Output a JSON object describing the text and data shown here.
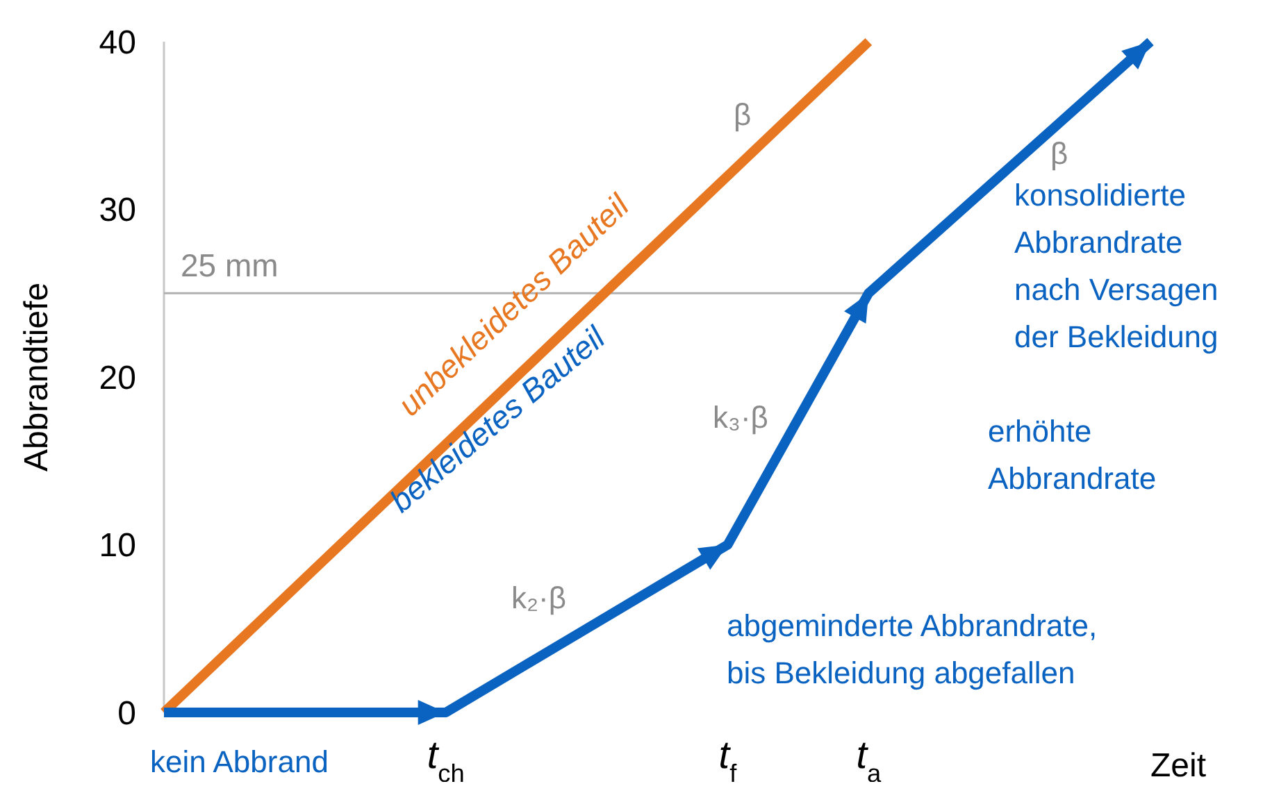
{
  "chart_data": {
    "type": "line",
    "xlabel": "Zeit",
    "ylabel": "Abbrandtiefe",
    "categories": [
      null,
      null,
      "t$_{ch}$",
      null,
      "t$_{f}$",
      "t$_{a}$",
      null,
      null
    ],
    "ylim": [
      0,
      40
    ],
    "yticks": [
      0,
      10,
      20,
      30,
      40
    ],
    "grid": false,
    "marker": "none",
    "line_style": "solid",
    "series": [
      {
        "name": "unbekleidetes Bauteil",
        "color": "#e87722",
        "values": [
          0,
          8,
          16,
          24,
          32,
          40,
          null,
          null
        ]
      },
      {
        "name": "bekleidetes Bauteil",
        "color": "#0b63c1",
        "values": [
          0,
          0,
          0,
          5,
          10,
          25,
          32.5,
          40
        ]
      }
    ],
    "ref_lines": [
      {
        "axis": "y",
        "value": 25,
        "label": "25 mm",
        "color": "#b0b0b0"
      }
    ],
    "annotations": [
      "β",
      "k₂·β",
      "k₃·β",
      "β",
      "konsolidierte Abbrandrate nach Versagen der Bekleidung",
      "erhöhte Abbrandrate",
      "abgeminderte Abbrandrate, bis Bekleidung abgefallen",
      "kein Abbrand"
    ]
  }
}
